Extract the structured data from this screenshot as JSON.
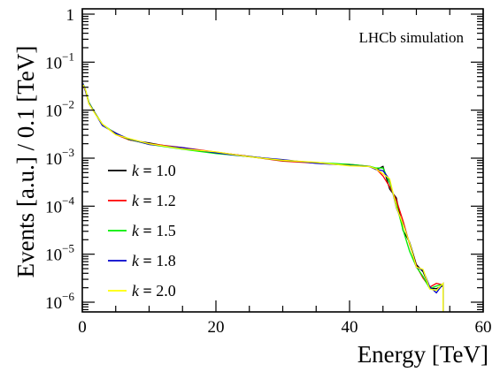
{
  "chart_data": {
    "type": "line",
    "title": "",
    "xlabel": "Energy [TeV]",
    "ylabel": "Events [a.u.] / 0.1 [TeV]",
    "annotation": "LHCb simulation",
    "xlim": [
      0,
      60
    ],
    "ylim": [
      5e-07,
      1
    ],
    "yscale": "log",
    "x_ticks": [
      0,
      20,
      40,
      60
    ],
    "x_tick_labels": [
      "0",
      "20",
      "40",
      "60"
    ],
    "y_ticks": [
      1e-06,
      1e-05,
      0.0001,
      0.001,
      0.01,
      0.1,
      1
    ],
    "y_tick_labels": [
      {
        "base": "10",
        "exp": "−6"
      },
      {
        "base": "10",
        "exp": "−5"
      },
      {
        "base": "10",
        "exp": "−4"
      },
      {
        "base": "10",
        "exp": "−3"
      },
      {
        "base": "10",
        "exp": "−2"
      },
      {
        "base": "10",
        "exp": "−1"
      },
      {
        "base": "1",
        "exp": ""
      }
    ],
    "legend_position": "bottom-left",
    "legend_symbol": "k",
    "legend_equals": "=",
    "series": [
      {
        "name": "1.0",
        "color": "#000000"
      },
      {
        "name": "1.2",
        "color": "#ff0000"
      },
      {
        "name": "1.5",
        "color": "#00ee00"
      },
      {
        "name": "1.8",
        "color": "#0000cc"
      },
      {
        "name": "2.0",
        "color": "#ffff00"
      }
    ],
    "x": [
      0.1,
      0.5,
      1,
      2,
      3,
      5,
      7,
      10,
      15,
      20,
      25,
      30,
      35,
      40,
      43,
      44,
      45,
      46,
      47,
      48,
      49,
      50,
      51,
      52,
      53,
      54
    ],
    "values": [
      0.035,
      0.025,
      0.014,
      0.008,
      0.005,
      0.0032,
      0.0025,
      0.002,
      0.0016,
      0.0013,
      0.0011,
      0.0009,
      0.0008,
      0.00072,
      0.00065,
      0.0006,
      0.00055,
      0.0003,
      0.00012,
      4e-05,
      1.5e-05,
      7e-06,
      4e-06,
      2e-06,
      2e-06,
      2e-06
    ]
  }
}
